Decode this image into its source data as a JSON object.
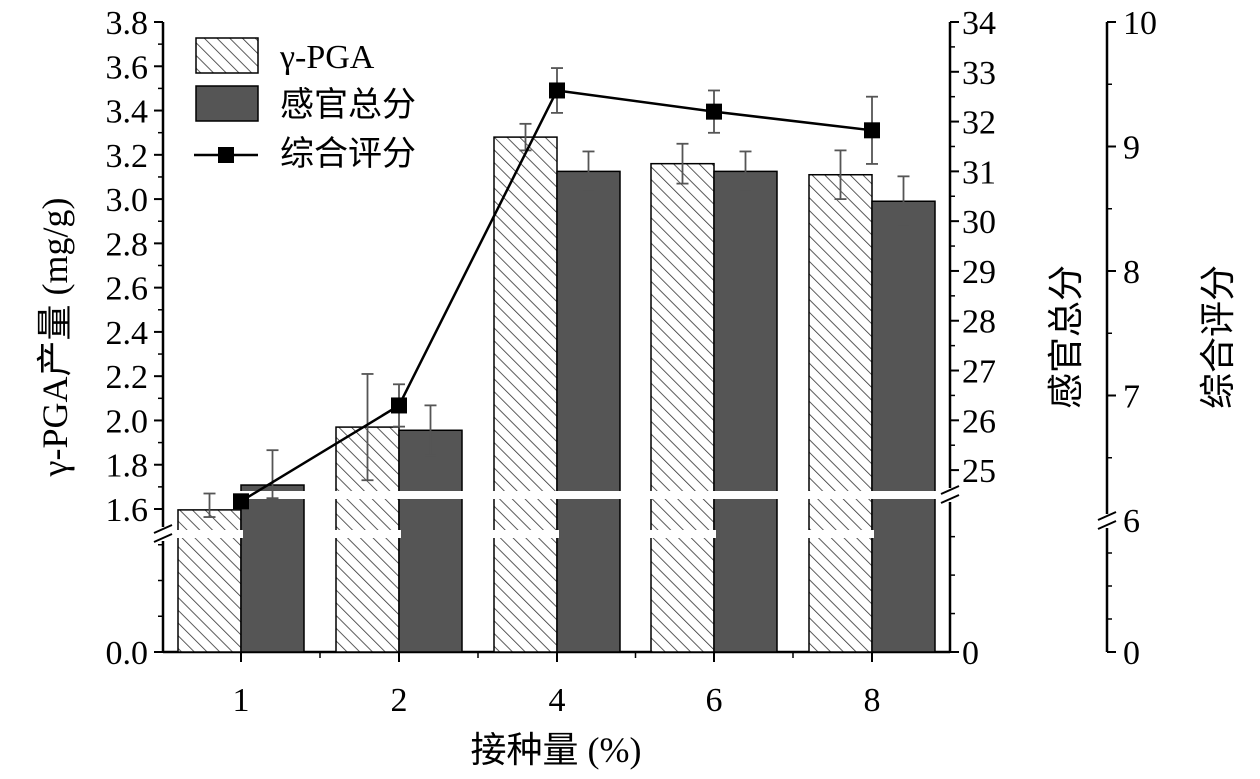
{
  "chart_data": {
    "type": "bar",
    "categories": [
      "1",
      "2",
      "4",
      "6",
      "8"
    ],
    "xlabel": "接种量 (%)",
    "ylabel_left": "γ-PGA产量 (mg/g)",
    "ylabel_right": "感官总分",
    "ylabel_far_right": "综合评分",
    "axes": {
      "left": {
        "ticks": [
          "0.0",
          "1.6",
          "1.8",
          "2.0",
          "2.2",
          "2.4",
          "2.6",
          "2.8",
          "3.0",
          "3.2",
          "3.4",
          "3.6",
          "3.8"
        ],
        "break_after": 0.0,
        "range": [
          0.0,
          3.8
        ]
      },
      "right": {
        "ticks": [
          "0",
          "25",
          "26",
          "27",
          "28",
          "29",
          "30",
          "31",
          "32",
          "33",
          "34"
        ],
        "break_after": 0,
        "range": [
          0,
          34
        ]
      },
      "far_right": {
        "ticks": [
          "0",
          "6",
          "7",
          "8",
          "9",
          "10"
        ],
        "break_after": 0,
        "range": [
          0,
          10
        ]
      }
    },
    "series": [
      {
        "name": "γ-PGA",
        "type": "bar",
        "pattern": "hatch",
        "axis": "left",
        "values": [
          1.59,
          1.97,
          3.28,
          3.16,
          3.11
        ],
        "errors": [
          0.08,
          0.24,
          0.06,
          0.09,
          0.11
        ]
      },
      {
        "name": "感官总分",
        "type": "bar",
        "color": "#555555",
        "axis": "right",
        "values": [
          24.7,
          25.8,
          31.0,
          31.0,
          30.4
        ],
        "errors": [
          0.7,
          0.5,
          0.4,
          0.4,
          0.5
        ]
      },
      {
        "name": "综合评分",
        "type": "line",
        "marker": "square",
        "axis": "far_right",
        "values": [
          6.15,
          6.92,
          9.45,
          9.28,
          9.13
        ],
        "errors": [
          0.0,
          0.17,
          0.18,
          0.17,
          0.27
        ]
      }
    ],
    "legend": {
      "position": "top-left"
    },
    "grid": false,
    "axis_break": true
  }
}
